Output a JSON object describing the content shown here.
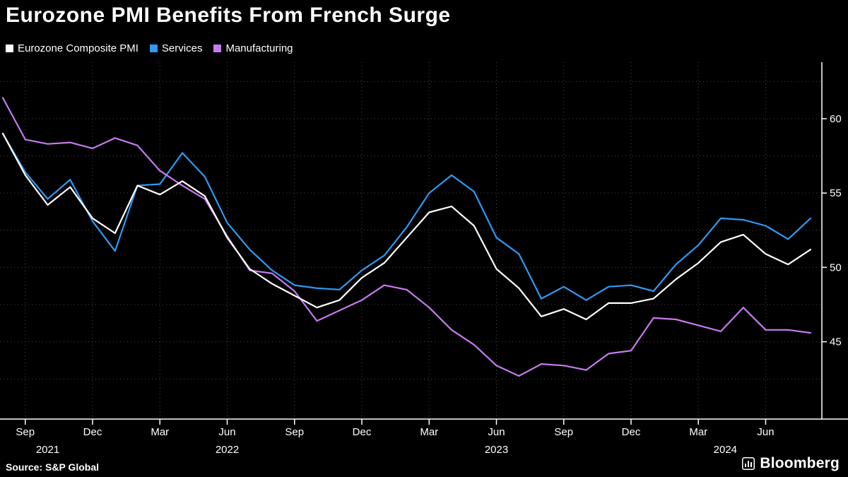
{
  "title": "Eurozone PMI Benefits From French Surge",
  "source": "Source: S&P Global",
  "brand": "Bloomberg",
  "colors": {
    "background": "#000000",
    "text": "#ffffff",
    "grid": "#4a4a4a",
    "axis": "#ffffff",
    "composite": "#ffffff",
    "services": "#2d9bf5",
    "manufacturing": "#c57bef"
  },
  "legend": [
    {
      "label": "Eurozone Composite PMI",
      "color": "#ffffff"
    },
    {
      "label": "Services",
      "color": "#2d9bf5"
    },
    {
      "label": "Manufacturing",
      "color": "#c57bef"
    }
  ],
  "chart_data": {
    "type": "line",
    "title": "Eurozone PMI Benefits From French Surge",
    "x_months": [
      "Aug 2021",
      "Sep 2021",
      "Oct 2021",
      "Nov 2021",
      "Dec 2021",
      "Jan 2022",
      "Feb 2022",
      "Mar 2022",
      "Apr 2022",
      "May 2022",
      "Jun 2022",
      "Jul 2022",
      "Aug 2022",
      "Sep 2022",
      "Oct 2022",
      "Nov 2022",
      "Dec 2022",
      "Jan 2023",
      "Feb 2023",
      "Mar 2023",
      "Apr 2023",
      "May 2023",
      "Jun 2023",
      "Jul 2023",
      "Aug 2023",
      "Sep 2023",
      "Oct 2023",
      "Nov 2023",
      "Dec 2023",
      "Jan 2024",
      "Feb 2024",
      "Mar 2024",
      "Apr 2024",
      "May 2024",
      "Jun 2024",
      "Jul 2024",
      "Aug 2024"
    ],
    "series": [
      {
        "name": "Services",
        "color": "#2d9bf5",
        "values": [
          59.0,
          56.4,
          54.6,
          55.9,
          53.1,
          51.1,
          55.5,
          55.6,
          57.7,
          56.1,
          53.0,
          51.2,
          49.8,
          48.8,
          48.6,
          48.5,
          49.8,
          50.8,
          52.7,
          55.0,
          56.2,
          55.1,
          52.0,
          50.9,
          47.9,
          48.7,
          47.8,
          48.7,
          48.8,
          48.4,
          50.2,
          51.5,
          53.3,
          53.2,
          52.8,
          51.9,
          53.3
        ]
      },
      {
        "name": "Manufacturing",
        "color": "#c57bef",
        "values": [
          61.4,
          58.6,
          58.3,
          58.4,
          58.0,
          58.7,
          58.2,
          56.5,
          55.5,
          54.6,
          52.1,
          49.8,
          49.6,
          48.4,
          46.4,
          47.1,
          47.8,
          48.8,
          48.5,
          47.3,
          45.8,
          44.8,
          43.4,
          42.7,
          43.5,
          43.4,
          43.1,
          44.2,
          44.4,
          46.6,
          46.5,
          46.1,
          45.7,
          47.3,
          45.8,
          45.8,
          45.6
        ]
      },
      {
        "name": "Eurozone Composite PMI",
        "color": "#ffffff",
        "values": [
          59.0,
          56.2,
          54.2,
          55.4,
          53.3,
          52.3,
          55.5,
          54.9,
          55.8,
          54.8,
          52.0,
          49.9,
          48.9,
          48.1,
          47.3,
          47.8,
          49.3,
          50.3,
          52.0,
          53.7,
          54.1,
          52.8,
          49.9,
          48.6,
          46.7,
          47.2,
          46.5,
          47.6,
          47.6,
          47.9,
          49.2,
          50.3,
          51.7,
          52.2,
          50.9,
          50.2,
          51.2
        ]
      }
    ],
    "ylim": [
      39.8,
      63.8
    ],
    "y_labeled_ticks": [
      45,
      50,
      55,
      60
    ],
    "y_gridline_step": 2.5,
    "x_ticks": [
      {
        "label": "Sep",
        "i": 1
      },
      {
        "label": "Dec",
        "i": 4
      },
      {
        "label": "Mar",
        "i": 7
      },
      {
        "label": "Jun",
        "i": 10
      },
      {
        "label": "Sep",
        "i": 13
      },
      {
        "label": "Dec",
        "i": 16
      },
      {
        "label": "Mar",
        "i": 19
      },
      {
        "label": "Jun",
        "i": 22
      },
      {
        "label": "Sep",
        "i": 25
      },
      {
        "label": "Dec",
        "i": 28
      },
      {
        "label": "Mar",
        "i": 31
      },
      {
        "label": "Jun",
        "i": 34
      }
    ],
    "x_years": [
      {
        "label": "2021",
        "i": 2
      },
      {
        "label": "2022",
        "i": 10
      },
      {
        "label": "2023",
        "i": 22
      },
      {
        "label": "2024",
        "i": 32.2
      }
    ],
    "grid": "dotted",
    "legend_position": "top-left",
    "y_axis_side": "right"
  }
}
